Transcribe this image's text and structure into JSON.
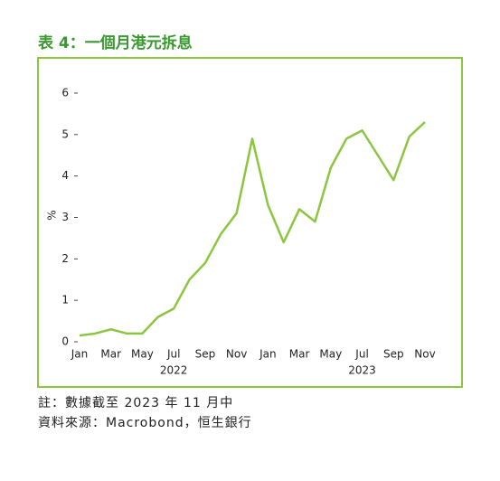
{
  "chart_data": {
    "type": "line",
    "title": "表 4：一個月港元拆息",
    "ylabel": "%",
    "x": [
      "2022-01",
      "2022-02",
      "2022-03",
      "2022-04",
      "2022-05",
      "2022-06",
      "2022-07",
      "2022-08",
      "2022-09",
      "2022-10",
      "2022-11",
      "2022-12",
      "2023-01",
      "2023-02",
      "2023-03",
      "2023-04",
      "2023-05",
      "2023-06",
      "2023-07",
      "2023-08",
      "2023-09",
      "2023-10",
      "2023-11"
    ],
    "series": [
      {
        "name": "一個月港元拆息",
        "color": "#8cc63f",
        "values": [
          0.15,
          0.2,
          0.3,
          0.2,
          0.2,
          0.6,
          0.8,
          1.5,
          1.9,
          2.6,
          3.1,
          4.9,
          3.3,
          2.4,
          3.2,
          2.9,
          4.2,
          4.9,
          5.1,
          4.5,
          3.9,
          4.95,
          5.3
        ]
      }
    ],
    "xlim": [
      "2022-01",
      "2023-11"
    ],
    "xticks": [
      {
        "value": "2022-01",
        "label": "Jan"
      },
      {
        "value": "2022-03",
        "label": "Mar"
      },
      {
        "value": "2022-05",
        "label": "May"
      },
      {
        "value": "2022-07",
        "label": "Jul"
      },
      {
        "value": "2022-09",
        "label": "Sep"
      },
      {
        "value": "2022-11",
        "label": "Nov"
      },
      {
        "value": "2023-01",
        "label": "Jan"
      },
      {
        "value": "2023-03",
        "label": "Mar"
      },
      {
        "value": "2023-05",
        "label": "May"
      },
      {
        "value": "2023-07",
        "label": "Jul"
      },
      {
        "value": "2023-09",
        "label": "Sep"
      },
      {
        "value": "2023-11",
        "label": "Nov"
      }
    ],
    "year_labels": [
      {
        "value": "2022-07",
        "label": "2022"
      },
      {
        "value": "2023-07",
        "label": "2023"
      }
    ],
    "ylim": [
      0,
      6
    ],
    "yticks": [
      0,
      1,
      2,
      3,
      4,
      5,
      6
    ]
  },
  "notes": [
    "註：數據截至 2023 年 11 月中",
    "資料來源：Macrobond，恒生銀行"
  ]
}
